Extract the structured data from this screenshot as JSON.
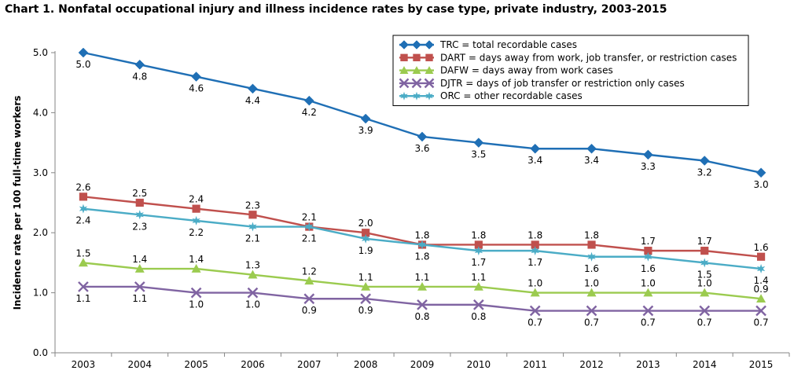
{
  "chart_data": {
    "type": "line",
    "title": "Chart 1. Nonfatal occupational injury and illness incidence rates by case type, private industry, 2003-2015",
    "xlabel": "",
    "ylabel": "Incidence rate per 100 full-time workers",
    "ylim": [
      0,
      5
    ],
    "yticks": [
      "0.0",
      "1.0",
      "2.0",
      "3.0",
      "4.0",
      "5.0"
    ],
    "categories": [
      "2003",
      "2004",
      "2005",
      "2006",
      "2007",
      "2008",
      "2009",
      "2010",
      "2011",
      "2012",
      "2013",
      "2014",
      "2015"
    ],
    "grid": false,
    "legend_position": "top-right",
    "series": [
      {
        "name": "TRC = total recordable cases",
        "color": "#1F6FB5",
        "marker": "diamond",
        "values": [
          5.0,
          4.8,
          4.6,
          4.4,
          4.2,
          3.9,
          3.6,
          3.5,
          3.4,
          3.4,
          3.3,
          3.2,
          3.0
        ],
        "labels": [
          "5.0",
          "4.8",
          "4.6",
          "4.4",
          "4.2",
          "3.9",
          "3.6",
          "3.5",
          "3.4",
          "3.4",
          "3.3",
          "3.2",
          "3.0"
        ],
        "label_position": "below"
      },
      {
        "name": "DART = days away from work, job transfer, or restriction cases",
        "color": "#C0504D",
        "marker": "square",
        "values": [
          2.6,
          2.5,
          2.4,
          2.3,
          2.1,
          2.0,
          1.8,
          1.8,
          1.8,
          1.8,
          1.7,
          1.7,
          1.6
        ],
        "labels": [
          "2.6",
          "2.5",
          "2.4",
          "2.3",
          "2.1",
          "2.0",
          "1.8",
          "1.8",
          "1.8",
          "1.8",
          "1.7",
          "1.7",
          "1.6"
        ],
        "label_position": "above"
      },
      {
        "name": "DAFW = days away from work cases",
        "color": "#9BCB4F",
        "marker": "triangle",
        "values": [
          1.5,
          1.4,
          1.4,
          1.3,
          1.2,
          1.1,
          1.1,
          1.1,
          1.0,
          1.0,
          1.0,
          1.0,
          0.9
        ],
        "labels": [
          "1.5",
          "1.4",
          "1.4",
          "1.3",
          "1.2",
          "1.1",
          "1.1",
          "1.1",
          "1.0",
          "1.0",
          "1.0",
          "1.0",
          "0.9"
        ],
        "label_position": "above"
      },
      {
        "name": "DJTR = days of job transfer or restriction only cases",
        "color": "#8064A2",
        "marker": "x",
        "values": [
          1.1,
          1.1,
          1.0,
          1.0,
          0.9,
          0.9,
          0.8,
          0.8,
          0.7,
          0.7,
          0.7,
          0.7,
          0.7
        ],
        "labels": [
          "1.1",
          "1.1",
          "1.0",
          "1.0",
          "0.9",
          "0.9",
          "0.8",
          "0.8",
          "0.7",
          "0.7",
          "0.7",
          "0.7",
          "0.7"
        ],
        "label_position": "below"
      },
      {
        "name": "ORC = other recordable cases",
        "color": "#4BACC6",
        "marker": "star",
        "values": [
          2.4,
          2.3,
          2.2,
          2.1,
          2.1,
          1.9,
          1.8,
          1.7,
          1.7,
          1.6,
          1.6,
          1.5,
          1.4
        ],
        "labels": [
          "2.4",
          "2.3",
          "2.2",
          "2.1",
          "2.1",
          "1.9",
          "1.8",
          "1.7",
          "1.7",
          "1.6",
          "1.6",
          "1.5",
          "1.4"
        ],
        "label_position": "below"
      }
    ]
  }
}
